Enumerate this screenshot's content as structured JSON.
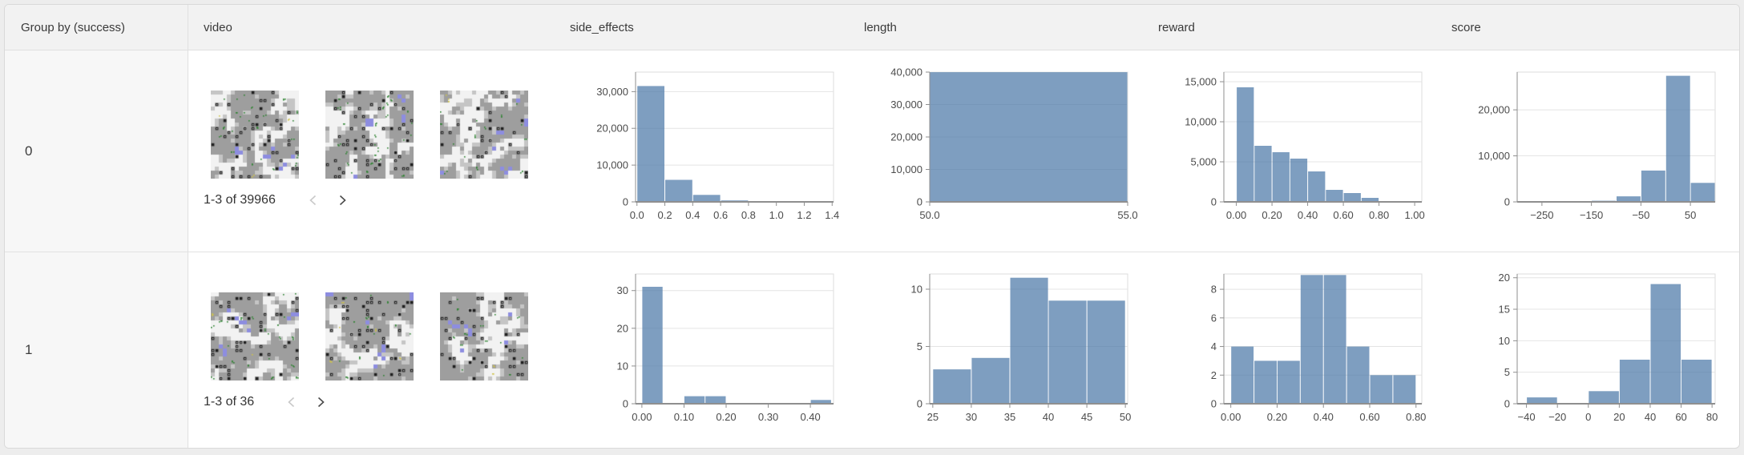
{
  "table": {
    "header": {
      "columns": [
        {
          "id": "group",
          "label": "Group by (success)"
        },
        {
          "id": "video",
          "label": "video"
        },
        {
          "id": "side_effects",
          "label": "side_effects"
        },
        {
          "id": "length",
          "label": "length"
        },
        {
          "id": "reward",
          "label": "reward"
        },
        {
          "id": "score",
          "label": "score"
        }
      ]
    },
    "rows": [
      {
        "group_label": "0",
        "video": {
          "pagination": "1-3 of 39966",
          "prev_enabled": false,
          "next_enabled": true,
          "thumbnail_count": 3
        },
        "charts": {
          "side_effects": "r0_side_effects",
          "length": "r0_length",
          "reward": "r0_reward",
          "score": "r0_score"
        }
      },
      {
        "group_label": "1",
        "video": {
          "pagination": "1-3 of 36",
          "prev_enabled": false,
          "next_enabled": true,
          "thumbnail_count": 3
        },
        "charts": {
          "side_effects": "r1_side_effects",
          "length": "r1_length",
          "reward": "r1_reward",
          "score": "r1_score"
        }
      }
    ]
  },
  "colors": {
    "histogram_bar": "#4c78a8",
    "histogram_bar_opacity": 0.72,
    "axis": "#8f8f8f",
    "grid": "#e4e4e4",
    "tick_label": "#4b4b4b",
    "header_bg": "#f2f2f2",
    "group_cell_bg": "#f7f7f7"
  },
  "chart_data": [
    {
      "id": "r0_side_effects",
      "type": "bar",
      "group": "0",
      "title": "side_effects",
      "bin_start": 0,
      "bin_width": 0.2,
      "values": [
        31500,
        6000,
        1900,
        400,
        120,
        30,
        16
      ],
      "x_domain": [
        -0.01,
        1.41
      ],
      "y_max": 35300,
      "x_ticks": [
        {
          "v": 0,
          "label": "0.0"
        },
        {
          "v": 0.2,
          "label": "0.2"
        },
        {
          "v": 0.4,
          "label": "0.4"
        },
        {
          "v": 0.6,
          "label": "0.6"
        },
        {
          "v": 0.8,
          "label": "0.8"
        },
        {
          "v": 1.0,
          "label": "1.0"
        },
        {
          "v": 1.2,
          "label": "1.2"
        },
        {
          "v": 1.4,
          "label": "1.4"
        }
      ],
      "y_ticks": [
        {
          "v": 0,
          "label": "0"
        },
        {
          "v": 10000,
          "label": "10,000"
        },
        {
          "v": 20000,
          "label": "20,000"
        },
        {
          "v": 30000,
          "label": "30,000"
        }
      ]
    },
    {
      "id": "r0_length",
      "type": "bar",
      "group": "0",
      "title": "length",
      "bin_start": 50,
      "bin_width": 5,
      "values": [
        39966
      ],
      "x_domain": [
        50,
        55
      ],
      "y_max": 40000,
      "x_ticks": [
        {
          "v": 50,
          "label": "50.0"
        },
        {
          "v": 55,
          "label": "55.0"
        }
      ],
      "y_ticks": [
        {
          "v": 0,
          "label": "0"
        },
        {
          "v": 10000,
          "label": "10,000"
        },
        {
          "v": 20000,
          "label": "20,000"
        },
        {
          "v": 30000,
          "label": "30,000"
        },
        {
          "v": 40000,
          "label": "40,000"
        }
      ]
    },
    {
      "id": "r0_reward",
      "type": "bar",
      "group": "0",
      "title": "reward",
      "bin_start": 0,
      "bin_width": 0.1,
      "values": [
        14300,
        7000,
        6200,
        5400,
        3800,
        1500,
        1100,
        500,
        100,
        66
      ],
      "x_domain": [
        -0.07,
        1.04
      ],
      "y_max": 16200,
      "x_ticks": [
        {
          "v": 0,
          "label": "0.00"
        },
        {
          "v": 0.2,
          "label": "0.20"
        },
        {
          "v": 0.4,
          "label": "0.40"
        },
        {
          "v": 0.6,
          "label": "0.60"
        },
        {
          "v": 0.8,
          "label": "0.80"
        },
        {
          "v": 1.0,
          "label": "1.00"
        }
      ],
      "y_ticks": [
        {
          "v": 0,
          "label": "0"
        },
        {
          "v": 5000,
          "label": "5,000"
        },
        {
          "v": 10000,
          "label": "10,000"
        },
        {
          "v": 15000,
          "label": "15,000"
        }
      ]
    },
    {
      "id": "r0_score",
      "type": "bar",
      "group": "0",
      "title": "score",
      "bin_start": -300,
      "bin_width": 50,
      "values": [
        30,
        60,
        100,
        250,
        1200,
        6800,
        27400,
        4126
      ],
      "x_domain": [
        -300,
        100
      ],
      "y_max": 28200,
      "x_ticks": [
        {
          "v": -250,
          "label": "−250"
        },
        {
          "v": -150,
          "label": "−150"
        },
        {
          "v": -50,
          "label": "−50"
        },
        {
          "v": 50,
          "label": "50"
        }
      ],
      "y_ticks": [
        {
          "v": 0,
          "label": "0"
        },
        {
          "v": 10000,
          "label": "10,000"
        },
        {
          "v": 20000,
          "label": "20,000"
        }
      ]
    },
    {
      "id": "r1_side_effects",
      "type": "bar",
      "group": "1",
      "title": "side_effects",
      "bin_start": 0,
      "bin_width": 0.05,
      "values": [
        31,
        0,
        2,
        2,
        0,
        0,
        0,
        0,
        1
      ],
      "x_domain": [
        -0.015,
        0.455
      ],
      "y_max": 34.4,
      "x_ticks": [
        {
          "v": 0,
          "label": "0.00"
        },
        {
          "v": 0.1,
          "label": "0.10"
        },
        {
          "v": 0.2,
          "label": "0.20"
        },
        {
          "v": 0.3,
          "label": "0.30"
        },
        {
          "v": 0.4,
          "label": "0.40"
        }
      ],
      "y_ticks": [
        {
          "v": 0,
          "label": "0"
        },
        {
          "v": 10,
          "label": "10"
        },
        {
          "v": 20,
          "label": "20"
        },
        {
          "v": 30,
          "label": "30"
        }
      ]
    },
    {
      "id": "r1_length",
      "type": "bar",
      "group": "1",
      "title": "length",
      "bin_start": 25,
      "bin_width": 5,
      "values": [
        3,
        4,
        11,
        9,
        9
      ],
      "x_domain": [
        24.6,
        50.3
      ],
      "y_max": 11.33,
      "x_ticks": [
        {
          "v": 25,
          "label": "25"
        },
        {
          "v": 30,
          "label": "30"
        },
        {
          "v": 35,
          "label": "35"
        },
        {
          "v": 40,
          "label": "40"
        },
        {
          "v": 45,
          "label": "45"
        },
        {
          "v": 50,
          "label": "50"
        }
      ],
      "y_ticks": [
        {
          "v": 0,
          "label": "0"
        },
        {
          "v": 5,
          "label": "5"
        },
        {
          "v": 10,
          "label": "10"
        }
      ]
    },
    {
      "id": "r1_reward",
      "type": "bar",
      "group": "1",
      "title": "reward",
      "bin_start": 0,
      "bin_width": 0.1,
      "values": [
        4,
        3,
        3,
        9,
        9,
        4,
        2,
        2
      ],
      "x_domain": [
        -0.03,
        0.825
      ],
      "y_max": 9.07,
      "x_ticks": [
        {
          "v": 0,
          "label": "0.00"
        },
        {
          "v": 0.2,
          "label": "0.20"
        },
        {
          "v": 0.4,
          "label": "0.40"
        },
        {
          "v": 0.6,
          "label": "0.60"
        },
        {
          "v": 0.8,
          "label": "0.80"
        }
      ],
      "y_ticks": [
        {
          "v": 0,
          "label": "0"
        },
        {
          "v": 2,
          "label": "2"
        },
        {
          "v": 4,
          "label": "4"
        },
        {
          "v": 6,
          "label": "6"
        },
        {
          "v": 8,
          "label": "8"
        }
      ]
    },
    {
      "id": "r1_score",
      "type": "bar",
      "group": "1",
      "title": "score",
      "bin_start": -40,
      "bin_width": 20,
      "values": [
        1,
        0,
        2,
        7,
        19,
        7
      ],
      "x_domain": [
        -46,
        82
      ],
      "y_max": 20.6,
      "x_ticks": [
        {
          "v": -40,
          "label": "−40"
        },
        {
          "v": -20,
          "label": "−20"
        },
        {
          "v": 0,
          "label": "0"
        },
        {
          "v": 20,
          "label": "20"
        },
        {
          "v": 40,
          "label": "40"
        },
        {
          "v": 60,
          "label": "60"
        },
        {
          "v": 80,
          "label": "80"
        }
      ],
      "y_ticks": [
        {
          "v": 0,
          "label": "0"
        },
        {
          "v": 5,
          "label": "5"
        },
        {
          "v": 10,
          "label": "10"
        },
        {
          "v": 15,
          "label": "15"
        },
        {
          "v": 20,
          "label": "20"
        }
      ]
    }
  ]
}
